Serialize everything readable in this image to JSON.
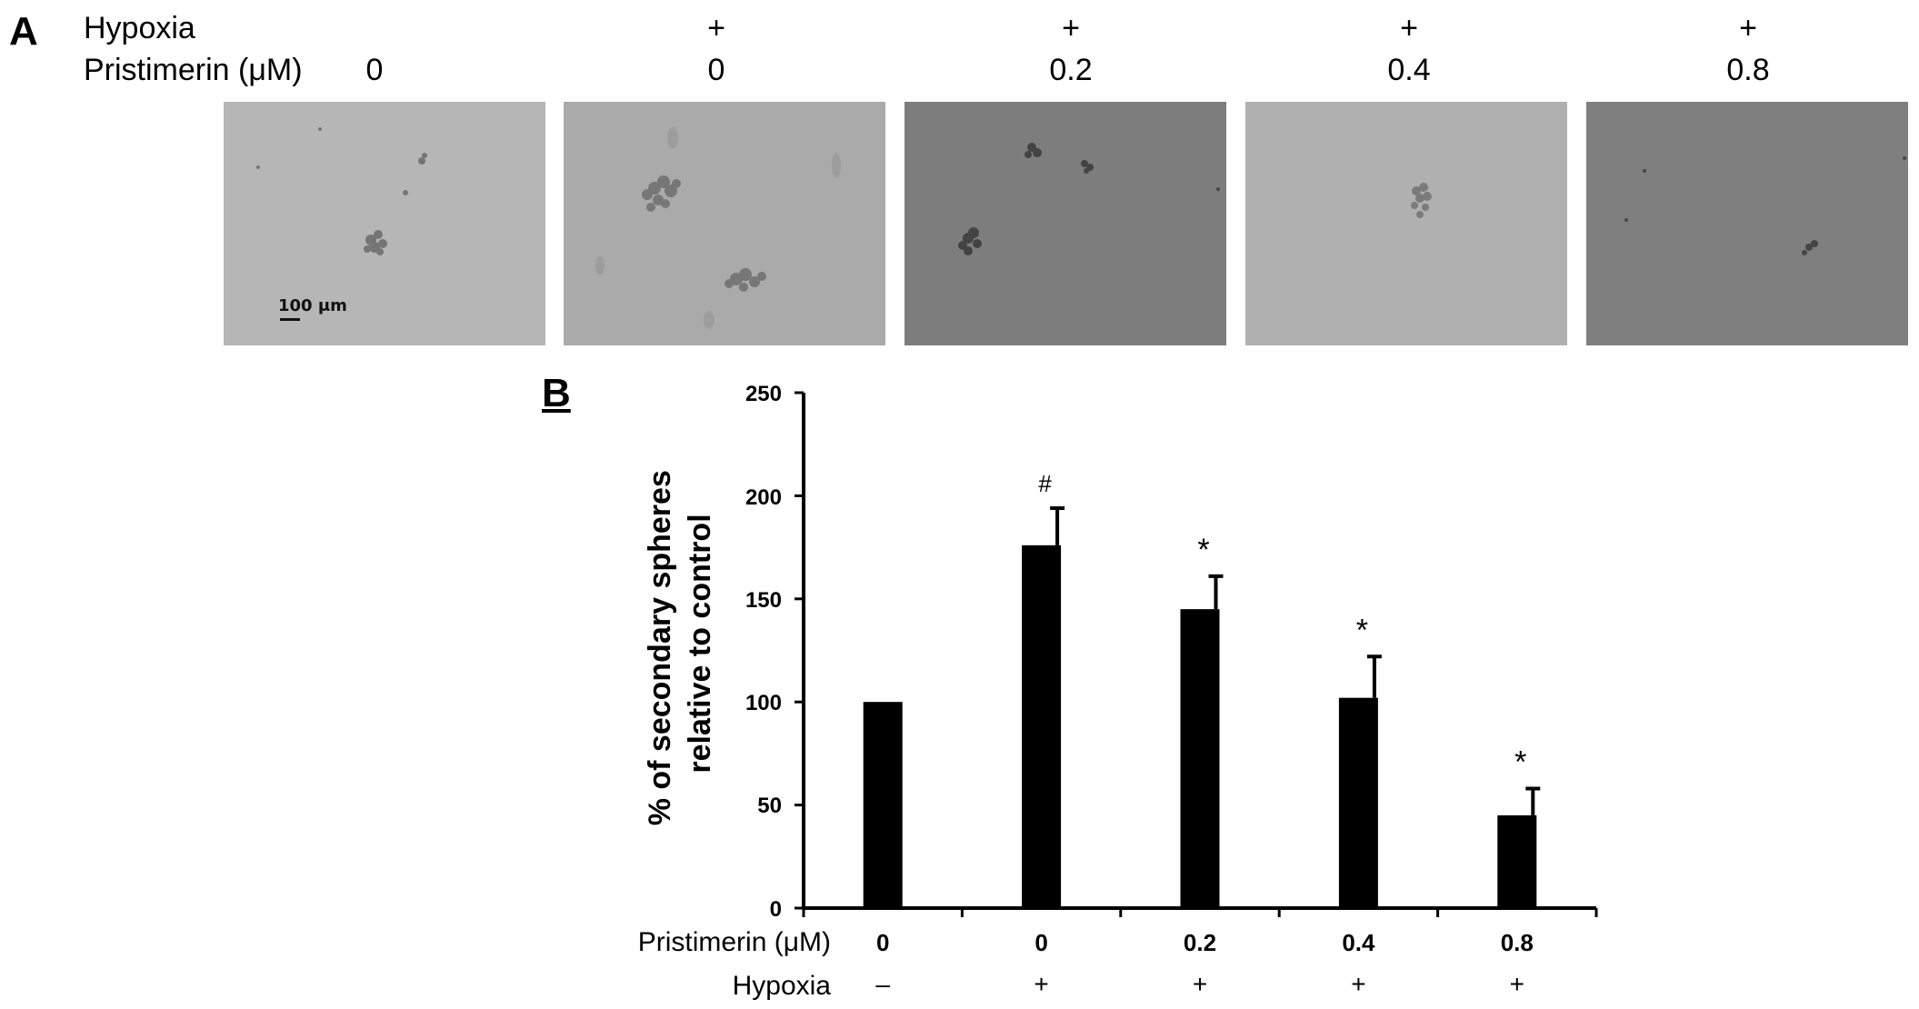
{
  "panel_a": {
    "letter": "A",
    "row_labels": [
      "Hypoxia",
      "Pristimerin (μM)"
    ],
    "hypoxia": [
      "",
      "+",
      "+",
      "+",
      "+"
    ],
    "pristimerin": [
      "0",
      "0",
      "0.2",
      "0.4",
      "0.8"
    ],
    "scale_bar_label": "100 μm",
    "image_tones": [
      "#b6b6b6",
      "#aaaaaa",
      "#7d7d7d",
      "#b0b0b0",
      "#7f7f7f"
    ]
  },
  "panel_b": {
    "letter": "B"
  },
  "chart_data": {
    "type": "bar",
    "ylabel": "% of secondary spheres relative to control",
    "ylabel_lines": [
      "% of secondary spheres",
      "relative to control"
    ],
    "ylim": [
      0,
      250
    ],
    "yticks": [
      "0",
      "50",
      "100",
      "150",
      "200",
      "250"
    ],
    "categories": [
      "0",
      "0",
      "0.2",
      "0.4",
      "0.8"
    ],
    "row_labels": [
      "Pristimerin (μM)",
      "Hypoxia"
    ],
    "hypoxia": [
      "–",
      "+",
      "+",
      "+",
      "+"
    ],
    "values": [
      100,
      176,
      145,
      102,
      45
    ],
    "errors": [
      0,
      18,
      16,
      20,
      13
    ],
    "annotations": [
      "",
      "#",
      "*",
      "*",
      "*"
    ],
    "bar_color": "#000000",
    "grid": false
  }
}
